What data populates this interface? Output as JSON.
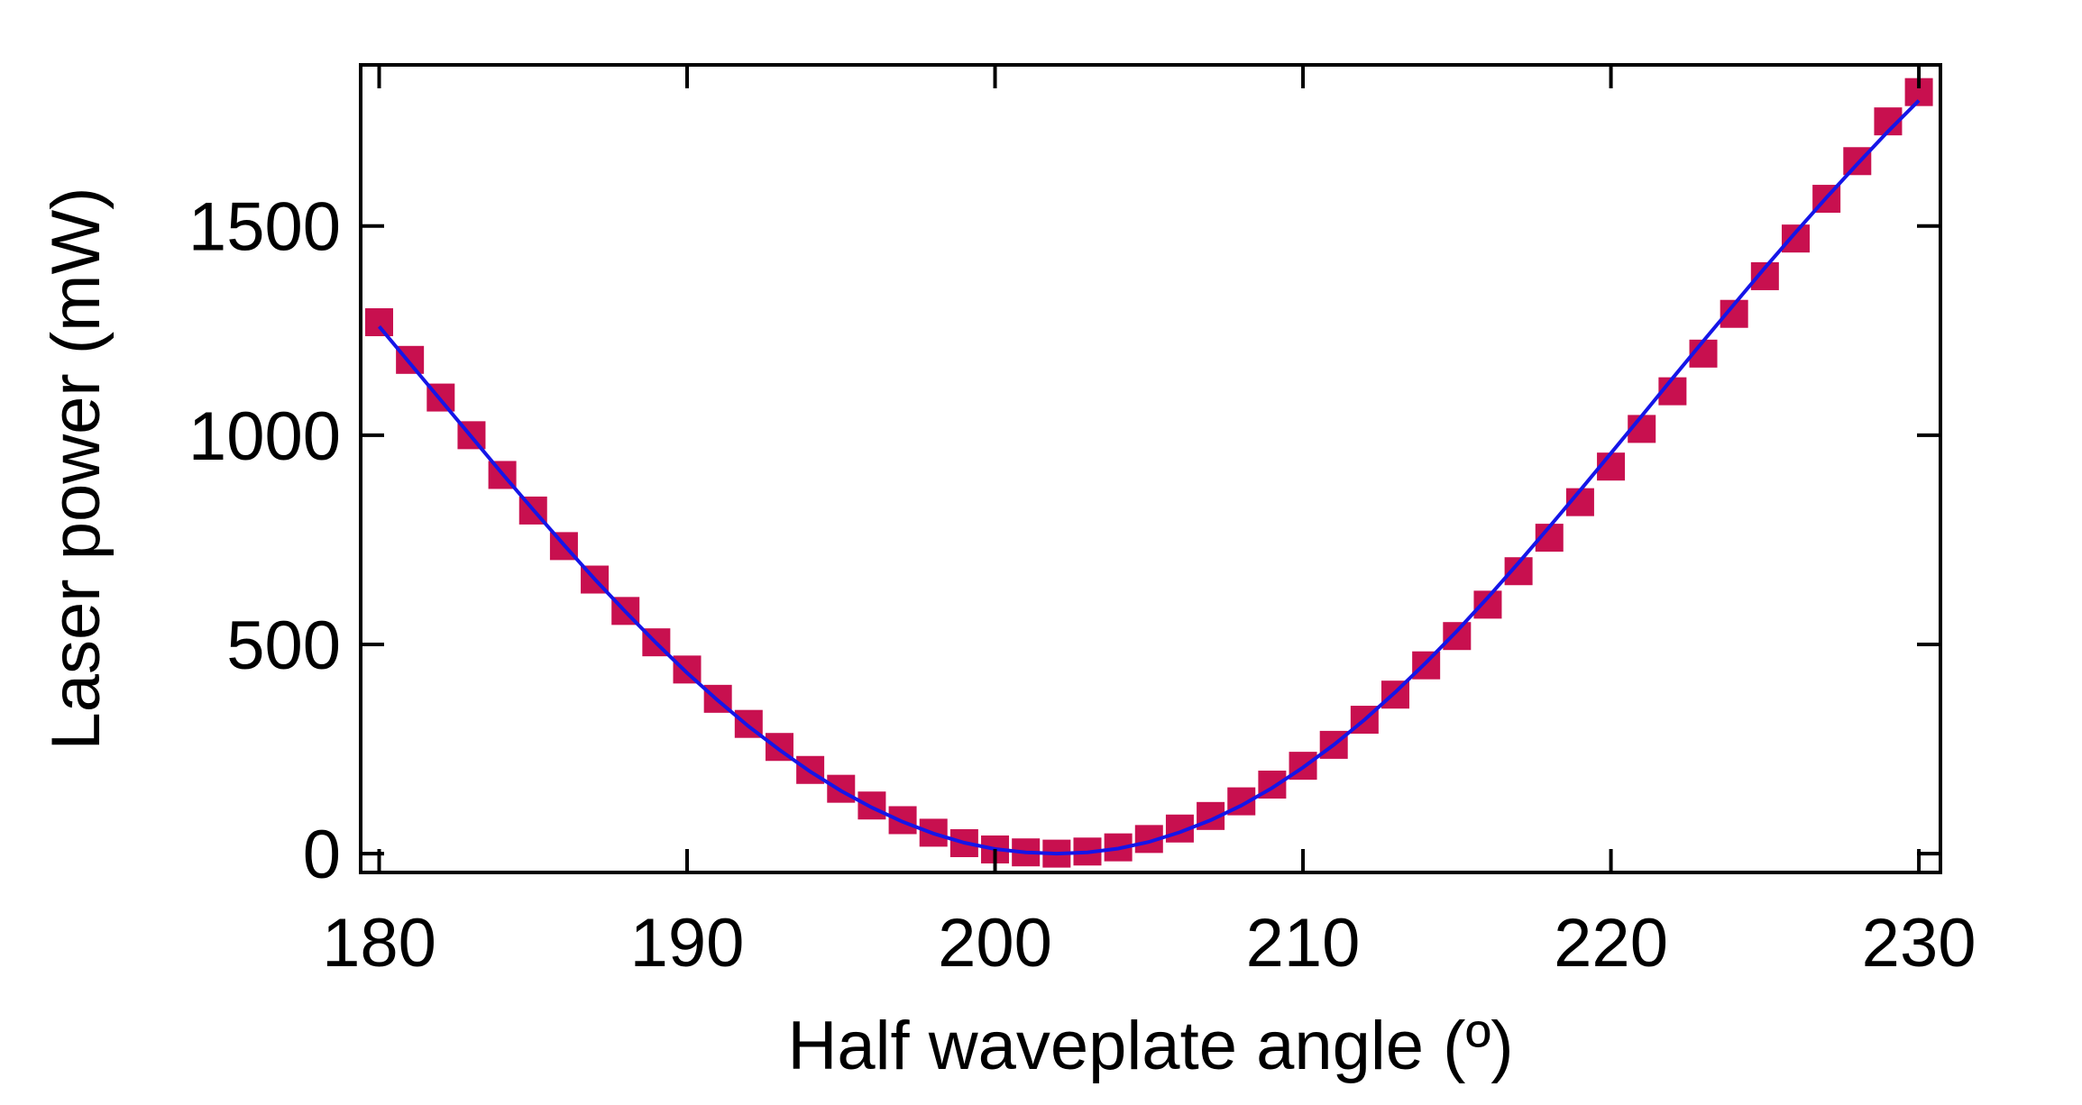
{
  "chart_data": {
    "type": "scatter",
    "xlabel": "Half waveplate angle (º)",
    "ylabel": "Laser power (mW)",
    "xlim": [
      179.4,
      230.7
    ],
    "ylim": [
      -45,
      1885
    ],
    "x_ticks": [
      180,
      190,
      200,
      210,
      220,
      230
    ],
    "y_ticks": [
      0,
      500,
      1000,
      1500
    ],
    "x_tick_labels": [
      "180",
      "190",
      "200",
      "210",
      "220",
      "230"
    ],
    "y_tick_labels": [
      "0",
      "500",
      "1000",
      "1500"
    ],
    "grid": false,
    "legend": "none",
    "series": [
      {
        "kind": "markers",
        "marker": "square",
        "color": "#c8104f",
        "x": [
          180,
          181,
          182,
          183,
          184,
          185,
          186,
          187,
          188,
          189,
          190,
          191,
          192,
          193,
          194,
          195,
          196,
          197,
          198,
          199,
          200,
          201,
          202,
          203,
          204,
          205,
          206,
          207,
          208,
          209,
          210,
          211,
          212,
          213,
          214,
          215,
          216,
          217,
          218,
          219,
          220,
          221,
          222,
          223,
          224,
          225,
          226,
          227,
          228,
          229,
          230
        ],
        "values": [
          1270,
          1180,
          1090,
          1000,
          905,
          820,
          735,
          655,
          580,
          505,
          440,
          370,
          310,
          255,
          200,
          155,
          115,
          80,
          50,
          25,
          10,
          3,
          0,
          5,
          15,
          35,
          60,
          90,
          125,
          165,
          210,
          260,
          320,
          380,
          450,
          520,
          595,
          675,
          755,
          840,
          925,
          1015,
          1105,
          1195,
          1290,
          1380,
          1470,
          1565,
          1655,
          1750,
          1820
        ]
      },
      {
        "kind": "line",
        "color": "#1515e8",
        "x": [
          180,
          181,
          182,
          183,
          184,
          185,
          186,
          187,
          188,
          189,
          190,
          191,
          192,
          193,
          194,
          195,
          196,
          197,
          198,
          199,
          200,
          201,
          202,
          203,
          204,
          205,
          206,
          207,
          208,
          209,
          210,
          211,
          212,
          213,
          214,
          215,
          216,
          217,
          218,
          219,
          220,
          221,
          222,
          223,
          224,
          225,
          226,
          227,
          228,
          229,
          230
        ],
        "values": [
          1260,
          1172,
          1084,
          996,
          908,
          822,
          738,
          656,
          578,
          503,
          432,
          366,
          304,
          248,
          196,
          150,
          110,
          76,
          48,
          26,
          11,
          3,
          0,
          3,
          12,
          28,
          51,
          80,
          115,
          157,
          206,
          260,
          320,
          386,
          457,
          532,
          612,
          695,
          781,
          868,
          957,
          1046,
          1136,
          1225,
          1313,
          1400,
          1485,
          1568,
          1648,
          1726,
          1800
        ]
      }
    ]
  }
}
